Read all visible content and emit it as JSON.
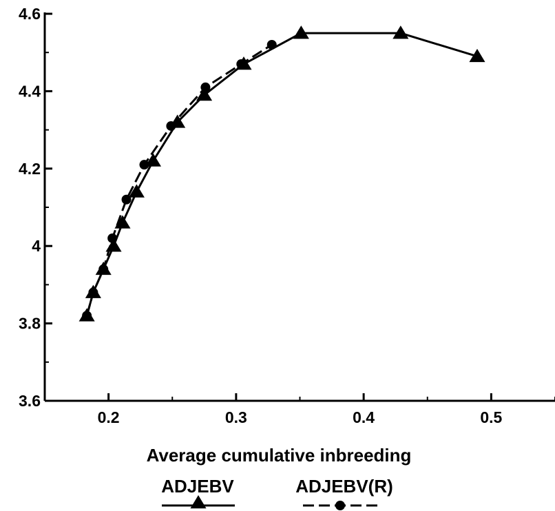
{
  "chart_data": {
    "type": "line",
    "title": "",
    "xlabel": "Average cumulative inbreeding",
    "ylabel": "",
    "xlim": [
      0.15,
      0.55
    ],
    "ylim": [
      3.6,
      4.6
    ],
    "x_ticks": [
      0.2,
      0.3,
      0.4,
      0.5
    ],
    "x_tick_labels": [
      "0.2",
      "0.3",
      "0.4",
      "0.5"
    ],
    "x_minor_ticks": [
      0.15,
      0.25,
      0.35,
      0.45,
      0.55
    ],
    "y_ticks": [
      3.6,
      3.8,
      4.0,
      4.2,
      4.4,
      4.6
    ],
    "y_tick_labels": [
      "3.6",
      "3.8",
      "4",
      "4.2",
      "4.4",
      "4.6"
    ],
    "y_minor_ticks": [
      3.7,
      3.9,
      4.1,
      4.3,
      4.5
    ],
    "grid": false,
    "legend_position": "bottom-center",
    "series": [
      {
        "name": "ADJEBV",
        "marker": "triangle",
        "line_style": "solid",
        "color": "#000000",
        "x": [
          0.183,
          0.188,
          0.196,
          0.204,
          0.211,
          0.222,
          0.235,
          0.254,
          0.275,
          0.306,
          0.351,
          0.429,
          0.489
        ],
        "y": [
          3.82,
          3.88,
          3.94,
          4.0,
          4.06,
          4.14,
          4.22,
          4.32,
          4.39,
          4.47,
          4.55,
          4.55,
          4.49
        ]
      },
      {
        "name": "ADJEBV(R)",
        "marker": "circle",
        "line_style": "dashed",
        "color": "#000000",
        "x": [
          0.183,
          0.188,
          0.196,
          0.203,
          0.214,
          0.228,
          0.249,
          0.276,
          0.304,
          0.328
        ],
        "y": [
          3.82,
          3.88,
          3.94,
          4.02,
          4.12,
          4.21,
          4.31,
          4.41,
          4.47,
          4.52
        ]
      }
    ]
  }
}
